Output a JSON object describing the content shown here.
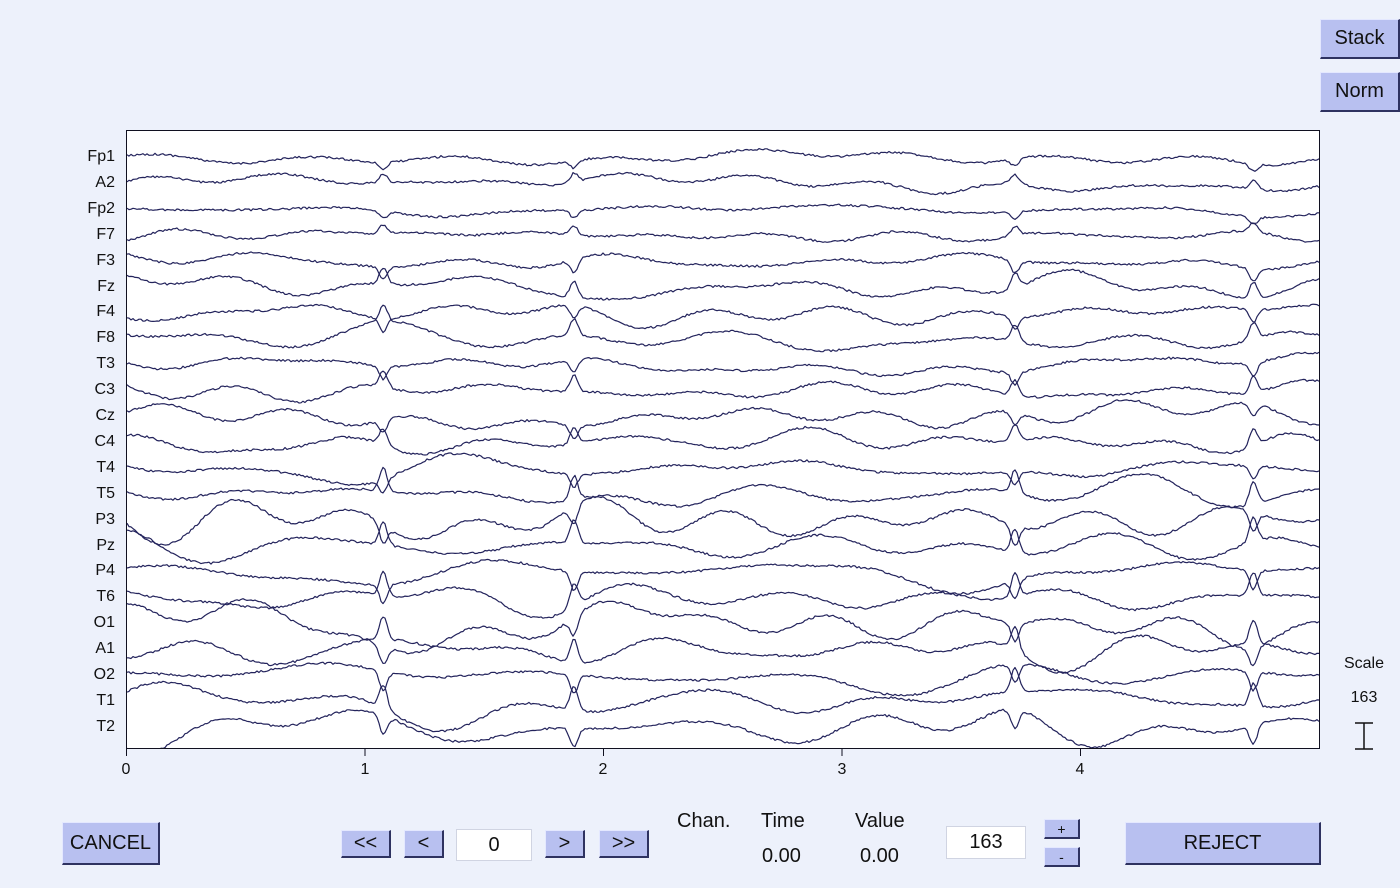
{
  "side_buttons": {
    "stack": "Stack",
    "norm": "Norm"
  },
  "channels": [
    "Fp1",
    "A2",
    "Fp2",
    "F7",
    "F3",
    "Fz",
    "F4",
    "F8",
    "T3",
    "C3",
    "Cz",
    "C4",
    "T4",
    "T5",
    "P3",
    "Pz",
    "P4",
    "T6",
    "O1",
    "A1",
    "O2",
    "T1",
    "T2"
  ],
  "x_axis": {
    "ticks": [
      "0",
      "1",
      "2",
      "3",
      "4"
    ],
    "range": [
      0,
      5
    ]
  },
  "scale": {
    "label": "Scale",
    "value": "163"
  },
  "colors": {
    "trace": "#23235c",
    "button": "#b8c0f0",
    "background": "#edf1fb"
  },
  "footer": {
    "cancel": "CANCEL",
    "first": "<<",
    "prev": "<",
    "page_value": "0",
    "next": ">",
    "last": ">>",
    "chan_header": "Chan.",
    "time_header": "Time",
    "value_header": "Value",
    "time_value": "0.00",
    "value_value": "0.00",
    "scale_value": "163",
    "plus": "+",
    "minus": "-",
    "reject": "REJECT"
  }
}
